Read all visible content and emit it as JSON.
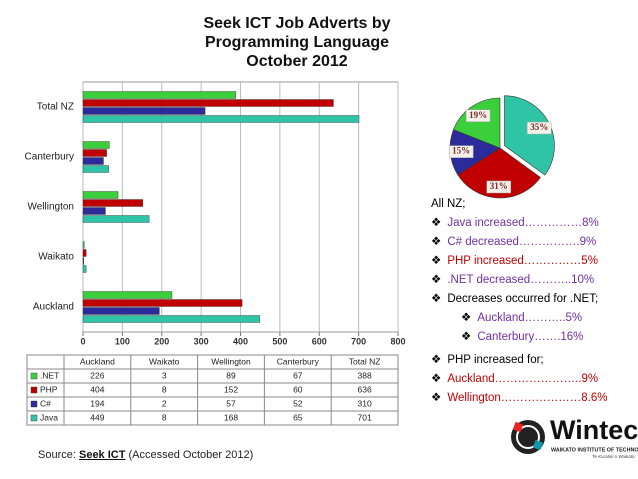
{
  "chart_data": [
    {
      "type": "hbar",
      "title": "Seek ICT Job Adverts by Programming Language October 2012",
      "categories": [
        "Auckland",
        "Waikato",
        "Wellington",
        "Canterbury",
        "Total NZ"
      ],
      "series": [
        {
          "name": ".NET",
          "color": "#3ccf3c",
          "values": [
            226,
            3,
            89,
            67,
            388
          ]
        },
        {
          "name": "PHP",
          "color": "#c00000",
          "values": [
            404,
            8,
            152,
            60,
            636
          ]
        },
        {
          "name": "C#",
          "color": "#2b2b9b",
          "values": [
            194,
            2,
            57,
            52,
            310
          ]
        },
        {
          "name": "Java",
          "color": "#30c4a6",
          "values": [
            449,
            8,
            168,
            65,
            701
          ]
        }
      ],
      "xlim": [
        0,
        800
      ],
      "xticks": [
        0,
        100,
        200,
        300,
        400,
        500,
        600,
        700,
        800
      ],
      "grid": true
    },
    {
      "type": "pie",
      "categories": [
        "Java",
        "PHP",
        "C#",
        ".NET"
      ],
      "values": [
        35,
        31,
        15,
        19
      ],
      "value_labels": [
        "35%",
        "31%",
        "15%",
        "19%"
      ],
      "colors": [
        "#30c4a6",
        "#c00000",
        "#2b2b9b",
        "#3ccf3c"
      ]
    }
  ],
  "notes": {
    "heading": "All NZ;",
    "items": [
      "Java increased……………8%",
      "C# decreased…………….9%",
      "PHP increased……………5%",
      ".NET decreased………..10%",
      "Decreases occurred for .NET;",
      "Auckland………..5%",
      "Canterbury…….16%",
      "PHP increased for;",
      "Auckland…………………..9%",
      "Wellington…………………8.6%"
    ]
  },
  "source": {
    "prefix": "Source:",
    "link": "Seek ICT",
    "suffix": "(Accessed October 2012)"
  },
  "logo": {
    "name": "Wintec",
    "line1": "WAIKATO INSTITUTE OF TECHNOLOGY",
    "line2": "Te Kuratini o Waikato"
  }
}
